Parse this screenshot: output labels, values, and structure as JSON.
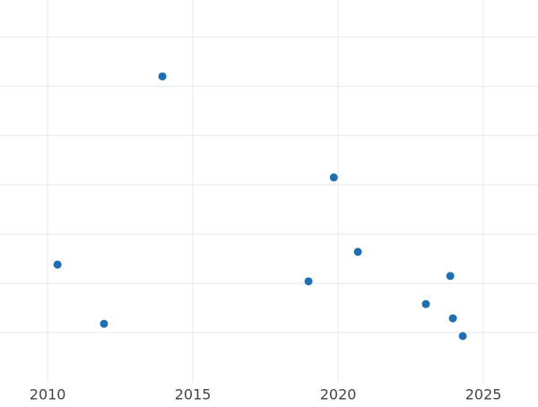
{
  "chart_data": {
    "type": "scatter",
    "x": [
      2010.34,
      2011.94,
      2013.95,
      2018.98,
      2019.85,
      2020.68,
      2023.02,
      2023.86,
      2023.95,
      2024.29
    ],
    "values": [
      2.38,
      1.18,
      6.2,
      2.04,
      4.15,
      2.64,
      1.58,
      2.15,
      1.29,
      0.93
    ],
    "color": "#1f6fb0",
    "xlim": [
      2008.36,
      2026.88
    ],
    "xticks": [
      2010,
      2015,
      2020,
      2025
    ],
    "ylim": [
      0,
      7.75
    ],
    "ygrid": [
      1,
      2,
      3,
      4,
      5,
      6,
      7
    ],
    "grid": true
  }
}
